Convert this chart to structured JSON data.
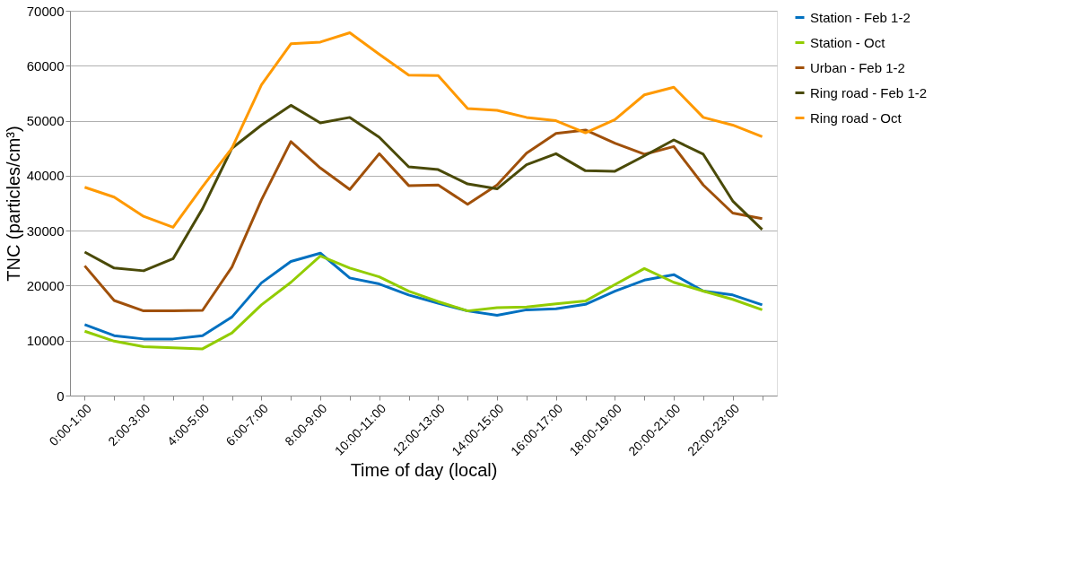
{
  "chart_data": {
    "type": "line",
    "xlabel": "Time of day (local)",
    "ylabel": "TNC (particles/cm³)",
    "categories": [
      "0:00-1:00",
      null,
      "2:00-3:00",
      null,
      "4:00-5:00",
      null,
      "6:00-7:00",
      null,
      "8:00-9:00",
      null,
      "10:00-11:00",
      null,
      "12:00-13:00",
      null,
      "14:00-15:00",
      null,
      "16:00-17:00",
      null,
      "18:00-19:00",
      null,
      "20:00-21:00",
      null,
      "22:00-23:00",
      null
    ],
    "ylim": [
      0,
      70000
    ],
    "yticks": [
      0,
      10000,
      20000,
      30000,
      40000,
      50000,
      60000,
      70000
    ],
    "grid": "y",
    "legend": "right",
    "marker": "none",
    "line_style": "solid",
    "series": [
      {
        "name": "Station - Feb 1-2",
        "color": "#0070c0",
        "values": [
          12900,
          10900,
          10300,
          10300,
          10900,
          14300,
          20500,
          24400,
          25900,
          21400,
          20300,
          18300,
          16800,
          15400,
          14600,
          15600,
          15800,
          16600,
          19000,
          21000,
          22000,
          19000,
          18300,
          16500
        ]
      },
      {
        "name": "Station - Oct",
        "color": "#92cc00",
        "values": [
          11700,
          9900,
          8900,
          8700,
          8500,
          11400,
          16500,
          20600,
          25400,
          23200,
          21600,
          19000,
          17100,
          15400,
          16000,
          16100,
          16700,
          17200,
          20200,
          23100,
          20600,
          19000,
          17500,
          15600
        ]
      },
      {
        "name": "Urban - Feb 1-2",
        "color": "#a0500a",
        "values": [
          23600,
          17300,
          15400,
          15400,
          15500,
          23400,
          35600,
          46200,
          41400,
          37500,
          44000,
          38200,
          38300,
          34800,
          38300,
          44100,
          47700,
          48300,
          45900,
          43900,
          45300,
          38300,
          33200,
          32200
        ]
      },
      {
        "name": "Ring road - Feb 1-2",
        "color": "#4a4a08",
        "values": [
          26100,
          23200,
          22700,
          24900,
          34000,
          45000,
          49200,
          52800,
          49600,
          50600,
          47000,
          41600,
          41100,
          38500,
          37600,
          42000,
          44000,
          40900,
          40800,
          43600,
          46500,
          43900,
          35400,
          30200
        ]
      },
      {
        "name": "Ring road - Oct",
        "color": "#ff9900",
        "values": [
          37900,
          36100,
          32600,
          30600,
          38000,
          45000,
          56500,
          64000,
          64300,
          66000,
          62100,
          58300,
          58200,
          52200,
          51900,
          50600,
          50000,
          47800,
          50200,
          54700,
          56100,
          50600,
          49200,
          47100
        ]
      }
    ]
  }
}
